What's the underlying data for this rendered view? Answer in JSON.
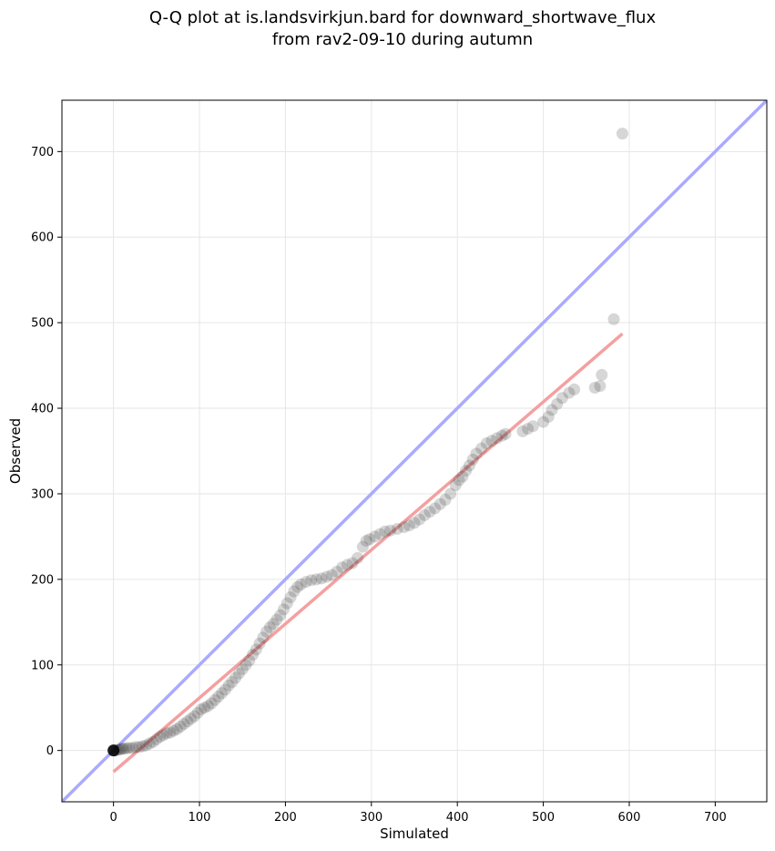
{
  "chart_data": {
    "type": "scatter",
    "title": "Q-Q plot at is.landsvirkjun.bard for downward_shortwave_flux",
    "subtitle": "from rav2-09-10 during autumn",
    "xlabel": "Simulated",
    "ylabel": "Observed",
    "xlim": [
      -60,
      760
    ],
    "ylim": [
      -60,
      760
    ],
    "xticks": [
      0,
      100,
      200,
      300,
      400,
      500,
      600,
      700
    ],
    "yticks": [
      0,
      100,
      200,
      300,
      400,
      500,
      600,
      700
    ],
    "xtick_labels": [
      "0",
      "100",
      "200",
      "300",
      "400",
      "500",
      "600",
      "700"
    ],
    "ytick_labels": [
      "0",
      "100",
      "200",
      "300",
      "400",
      "500",
      "600",
      "700"
    ],
    "grid": true,
    "identity_line": {
      "name": "1:1 line",
      "color": "#aaaaff"
    },
    "fit_line": {
      "name": "linear fit",
      "color": "#f4a0a0",
      "x": [
        0,
        592
      ],
      "y": [
        -25,
        487
      ]
    },
    "point_color": "#333333",
    "start_point": {
      "x": 0,
      "y": 0,
      "color": "#000000"
    },
    "series": [
      {
        "name": "quantiles",
        "points": [
          [
            0,
            0
          ],
          [
            2,
            0
          ],
          [
            4,
            0.5
          ],
          [
            6,
            1
          ],
          [
            8,
            1.5
          ],
          [
            10,
            2
          ],
          [
            12,
            2
          ],
          [
            15,
            2.5
          ],
          [
            18,
            3
          ],
          [
            22,
            3
          ],
          [
            26,
            4
          ],
          [
            30,
            4
          ],
          [
            34,
            5
          ],
          [
            38,
            6
          ],
          [
            42,
            8
          ],
          [
            46,
            10
          ],
          [
            50,
            13
          ],
          [
            54,
            16
          ],
          [
            58,
            18
          ],
          [
            62,
            20
          ],
          [
            66,
            21
          ],
          [
            70,
            23
          ],
          [
            74,
            25
          ],
          [
            78,
            28
          ],
          [
            82,
            31
          ],
          [
            86,
            34
          ],
          [
            90,
            37
          ],
          [
            94,
            40
          ],
          [
            98,
            44
          ],
          [
            102,
            48
          ],
          [
            106,
            50
          ],
          [
            110,
            52
          ],
          [
            114,
            55
          ],
          [
            118,
            59
          ],
          [
            122,
            63
          ],
          [
            126,
            67
          ],
          [
            130,
            71
          ],
          [
            134,
            76
          ],
          [
            138,
            80
          ],
          [
            142,
            85
          ],
          [
            146,
            90
          ],
          [
            150,
            95
          ],
          [
            154,
            100
          ],
          [
            158,
            105
          ],
          [
            162,
            112
          ],
          [
            166,
            118
          ],
          [
            170,
            125
          ],
          [
            174,
            132
          ],
          [
            178,
            139
          ],
          [
            182,
            144
          ],
          [
            186,
            148
          ],
          [
            190,
            153
          ],
          [
            194,
            158
          ],
          [
            198,
            165
          ],
          [
            202,
            172
          ],
          [
            206,
            179
          ],
          [
            210,
            186
          ],
          [
            214,
            191
          ],
          [
            218,
            194
          ],
          [
            224,
            197
          ],
          [
            230,
            199
          ],
          [
            236,
            200
          ],
          [
            242,
            201
          ],
          [
            248,
            203
          ],
          [
            254,
            205
          ],
          [
            260,
            209
          ],
          [
            266,
            214
          ],
          [
            272,
            217
          ],
          [
            278,
            219
          ],
          [
            284,
            225
          ],
          [
            290,
            238
          ],
          [
            294,
            245
          ],
          [
            298,
            247
          ],
          [
            304,
            250
          ],
          [
            310,
            253
          ],
          [
            316,
            256
          ],
          [
            322,
            257
          ],
          [
            330,
            259
          ],
          [
            338,
            261
          ],
          [
            344,
            263
          ],
          [
            350,
            266
          ],
          [
            356,
            270
          ],
          [
            362,
            275
          ],
          [
            368,
            279
          ],
          [
            374,
            283
          ],
          [
            380,
            288
          ],
          [
            386,
            293
          ],
          [
            392,
            300
          ],
          [
            398,
            310
          ],
          [
            402,
            316
          ],
          [
            406,
            320
          ],
          [
            410,
            327
          ],
          [
            414,
            333
          ],
          [
            418,
            340
          ],
          [
            422,
            347
          ],
          [
            428,
            353
          ],
          [
            434,
            359
          ],
          [
            440,
            362
          ],
          [
            446,
            365
          ],
          [
            452,
            368
          ],
          [
            456,
            370
          ],
          [
            476,
            373
          ],
          [
            482,
            376
          ],
          [
            488,
            379
          ],
          [
            500,
            384
          ],
          [
            506,
            390
          ],
          [
            510,
            398
          ],
          [
            516,
            405
          ],
          [
            522,
            412
          ],
          [
            530,
            418
          ],
          [
            536,
            422
          ],
          [
            560,
            424
          ],
          [
            566,
            426
          ],
          [
            568,
            439
          ],
          [
            582,
            504
          ],
          [
            592,
            721
          ]
        ]
      }
    ]
  }
}
